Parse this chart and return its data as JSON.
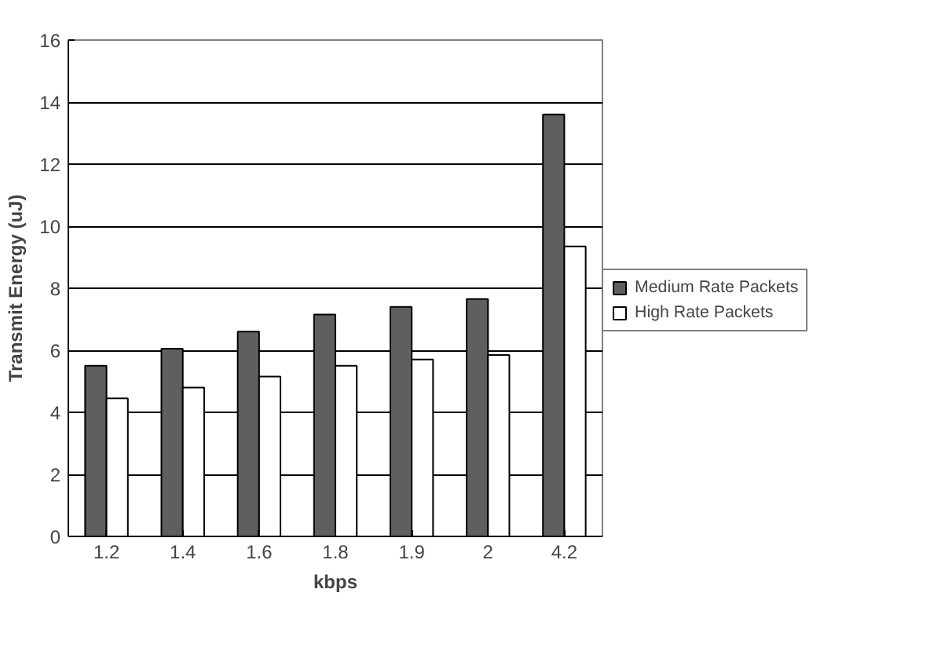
{
  "chart_data": {
    "type": "bar",
    "xlabel": "kbps",
    "ylabel": "Transmit Energy (uJ)",
    "categories": [
      "1.2",
      "1.4",
      "1.6",
      "1.8",
      "1.9",
      "2",
      "4.2"
    ],
    "series": [
      {
        "name": "Medium Rate Packets",
        "color": "#5f5f5f",
        "values": [
          5.5,
          6.05,
          6.6,
          7.15,
          7.4,
          7.65,
          13.6
        ]
      },
      {
        "name": "High Rate Packets",
        "color": "#ffffff",
        "values": [
          4.45,
          4.8,
          5.15,
          5.5,
          5.7,
          5.85,
          9.35
        ]
      }
    ],
    "ylim": [
      0,
      16
    ],
    "yticks": [
      0,
      2,
      4,
      6,
      8,
      10,
      12,
      14,
      16
    ],
    "grid": "y",
    "legend": "right"
  }
}
